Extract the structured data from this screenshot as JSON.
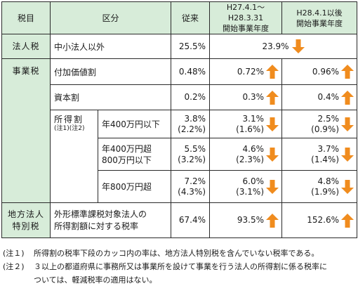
{
  "header": {
    "col1": "税目",
    "col2": "区分",
    "col3": "従来",
    "col4_line1": "H27.4.1～H28.3.31",
    "col4_line2": "開始事業年度",
    "col5_line1": "H28.4.1以後",
    "col5_line2": "開始事業年度"
  },
  "rows": {
    "hojin": {
      "tax": "法人税",
      "category": "中小法人以外",
      "old": "25.5%",
      "merged": "23.9%",
      "merged_dir": "down"
    },
    "jigyo": {
      "tax": "事業税"
    },
    "fuka": {
      "category": "付加価値割",
      "old": "0.48%",
      "h27": "0.72%",
      "h27_dir": "up",
      "h28": "0.96%",
      "h28_dir": "up"
    },
    "shihon": {
      "category": "資本割",
      "old": "0.2%",
      "h27": "0.3%",
      "h27_dir": "up",
      "h28": "0.4%",
      "h28_dir": "up"
    },
    "shotoku": {
      "category": "所得割",
      "note": "(注1)(注2)"
    },
    "s1": {
      "range": "年400万円以下",
      "old_a": "3.8%",
      "old_b": "(2.2%)",
      "h27_a": "3.1%",
      "h27_b": "(1.6%)",
      "h27_dir": "down",
      "h28_a": "2.5%",
      "h28_b": "(0.9%)",
      "h28_dir": "down"
    },
    "s2": {
      "range_a": "年400万円超",
      "range_b": "800万円以下",
      "old_a": "5.5%",
      "old_b": "(3.2%)",
      "h27_a": "4.6%",
      "h27_b": "(2.3%)",
      "h27_dir": "down",
      "h28_a": "3.7%",
      "h28_b": "(1.4%)",
      "h28_dir": "down"
    },
    "s3": {
      "range": "年800万円超",
      "old_a": "7.2%",
      "old_b": "(4.3%)",
      "h27_a": "6.0%",
      "h27_b": "(3.1%)",
      "h27_dir": "down",
      "h28_a": "4.8%",
      "h28_b": "(1.9%)",
      "h28_dir": "down"
    },
    "chiho": {
      "tax_a": "地方法人",
      "tax_b": "特別税",
      "category_a": "外形標準課税対象法人の",
      "category_b": "所得割額に対する税率",
      "old": "67.4%",
      "h27": "93.5%",
      "h27_dir": "up",
      "h28": "152.6%",
      "h28_dir": "up"
    }
  },
  "notes": {
    "n1_key": "(注１)",
    "n1_text": "所得割の税率下段のカッコ内の率は、地方法人特別税を含んでいない税率である。",
    "n2_key": "(注２)",
    "n2_text": "３以上の都道府県に事務所又は事業所を設けて事業を行う法人の所得割に係る税率に",
    "n2_cont": "ついては、軽減税率の適用はない。"
  },
  "colors": {
    "header_bg": "#d7ecd9",
    "arrow": "#f08c1e",
    "border": "#2a2a2a"
  },
  "icons": {
    "up": "up-arrow-icon",
    "down": "down-arrow-icon"
  }
}
